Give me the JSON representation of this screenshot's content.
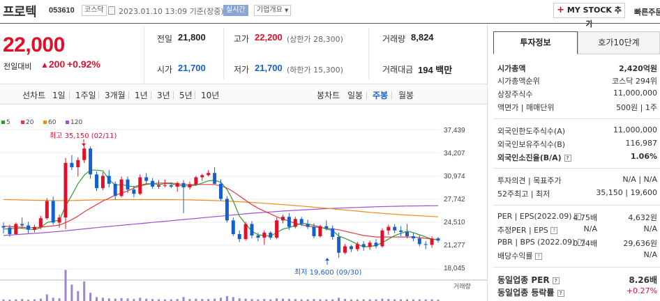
{
  "header": {
    "stock_name": "프로텍",
    "stock_code": "053610",
    "market_badge": "코스닥",
    "datetime": "2023.01.10 13:09",
    "basis": "기준(장중)",
    "realtime_badge": "실시간",
    "company_overview": "기업개요",
    "mystock_button": "MY STOCK 추가",
    "quick_order": "빠른주문"
  },
  "quote": {
    "price": "22,000",
    "change_label": "전일대비",
    "change_amount": "200",
    "change_pct": "+0.92%",
    "prev_close_label": "전일",
    "prev_close": "21,800",
    "high_label": "고가",
    "high": "22,200",
    "upper_limit": "(상한가 28,300)",
    "volume_label": "거래량",
    "volume": "8,824",
    "open_label": "시가",
    "open": "21,700",
    "low_label": "저가",
    "low": "21,700",
    "lower_limit": "(하한가 15,300)",
    "amount_label": "거래대금",
    "amount": "194 백만"
  },
  "chart_tabs": {
    "line_label": "선차트",
    "line_items": [
      "1일",
      "1주일",
      "3개월",
      "1년",
      "3년",
      "5년",
      "10년"
    ],
    "candle_label": "봉차트",
    "candle_items": [
      "일봉",
      "주봉",
      "월봉"
    ],
    "selected_candle": "주봉"
  },
  "legend": [
    {
      "label": "5",
      "color": "#2e9a2e"
    },
    {
      "label": "20",
      "color": "#e8383c"
    },
    {
      "label": "60",
      "color": "#f08c1e"
    },
    {
      "label": "120",
      "color": "#9f4fd0"
    }
  ],
  "chart_data": {
    "type": "candlestick",
    "yticks": [
      "37,439",
      "34,207",
      "30,974",
      "27,742",
      "24,510",
      "21,277",
      "18,045"
    ],
    "ylim": [
      18045,
      37439
    ],
    "high_annotation": "최고 35,150 (02/11)",
    "low_annotation": "최저 19,600 (09/30)",
    "volume_label": "거래량",
    "candles": [
      [
        24000,
        24500,
        23000,
        23800
      ],
      [
        23800,
        24200,
        22500,
        22900
      ],
      [
        22900,
        24500,
        22800,
        24300
      ],
      [
        24300,
        25200,
        23700,
        24100
      ],
      [
        24100,
        24600,
        23000,
        23500
      ],
      [
        23500,
        24200,
        23200,
        23900
      ],
      [
        23900,
        25400,
        23600,
        25100
      ],
      [
        25100,
        27900,
        24900,
        27500
      ],
      [
        27500,
        28100,
        24200,
        24500
      ],
      [
        24500,
        25600,
        23800,
        25200
      ],
      [
        25200,
        33500,
        23600,
        32800
      ],
      [
        32800,
        33900,
        31800,
        32200
      ],
      [
        32200,
        33600,
        30900,
        33200
      ],
      [
        33200,
        35150,
        32800,
        34800
      ],
      [
        34800,
        35100,
        30600,
        31200
      ],
      [
        31200,
        31600,
        28900,
        29300
      ],
      [
        29300,
        31500,
        29000,
        31000
      ],
      [
        31000,
        31800,
        29400,
        29900
      ],
      [
        29900,
        30200,
        27700,
        28200
      ],
      [
        28200,
        30900,
        28000,
        30500
      ],
      [
        30500,
        30900,
        28600,
        29100
      ],
      [
        29100,
        29600,
        28000,
        28500
      ],
      [
        28500,
        31200,
        28300,
        30800
      ],
      [
        30800,
        31400,
        29800,
        30300
      ],
      [
        30300,
        30700,
        29200,
        29500
      ],
      [
        29500,
        30400,
        29200,
        29700
      ],
      [
        29700,
        30500,
        29400,
        29700
      ],
      [
        29700,
        30100,
        29300,
        29500
      ],
      [
        29500,
        30200,
        28800,
        30000
      ],
      [
        30000,
        30400,
        25800,
        29400
      ],
      [
        29400,
        30200,
        29100,
        29800
      ],
      [
        29800,
        31000,
        29600,
        30800
      ],
      [
        30800,
        31300,
        30300,
        31100
      ],
      [
        31100,
        31800,
        30900,
        31400
      ],
      [
        31400,
        32200,
        29800,
        29900
      ],
      [
        29900,
        30500,
        27500,
        27800
      ],
      [
        27800,
        28200,
        24500,
        24800
      ],
      [
        24800,
        25200,
        22600,
        22900
      ],
      [
        22900,
        23400,
        21800,
        22200
      ],
      [
        22200,
        24600,
        22000,
        24300
      ],
      [
        24300,
        24700,
        22300,
        22700
      ],
      [
        22700,
        23100,
        21900,
        22400
      ],
      [
        22400,
        23400,
        21400,
        23100
      ],
      [
        23100,
        23300,
        22100,
        22400
      ],
      [
        22400,
        25200,
        22200,
        24800
      ],
      [
        24800,
        25600,
        24400,
        25300
      ],
      [
        25300,
        25800,
        23500,
        23900
      ],
      [
        23900,
        25300,
        23700,
        25000
      ],
      [
        25000,
        25300,
        24000,
        24300
      ],
      [
        24300,
        24900,
        23600,
        23900
      ],
      [
        23900,
        24400,
        22300,
        22600
      ],
      [
        22600,
        24200,
        22400,
        24000
      ],
      [
        24000,
        24800,
        23400,
        23700
      ],
      [
        23700,
        24100,
        22100,
        22500
      ],
      [
        22500,
        23100,
        19600,
        20300
      ],
      [
        20300,
        21500,
        20100,
        21200
      ],
      [
        21200,
        21400,
        20400,
        20800
      ],
      [
        20800,
        21800,
        20500,
        21500
      ],
      [
        21500,
        21900,
        20600,
        21100
      ],
      [
        21100,
        22000,
        20700,
        21700
      ],
      [
        21700,
        22200,
        20900,
        21200
      ],
      [
        21200,
        23700,
        21000,
        23400
      ],
      [
        23400,
        24200,
        22800,
        23900
      ],
      [
        23900,
        24300,
        23000,
        23400
      ],
      [
        23400,
        24000,
        22600,
        23200
      ],
      [
        23200,
        24300,
        22300,
        22600
      ],
      [
        22600,
        23100,
        21900,
        22300
      ],
      [
        22300,
        22700,
        21200,
        21500
      ],
      [
        21500,
        21900,
        20800,
        21400
      ],
      [
        21400,
        22600,
        21000,
        22300
      ],
      [
        22300,
        22500,
        21700,
        22000
      ]
    ],
    "ma5": [
      23600,
      23650,
      23700,
      23700,
      23600,
      23500,
      23800,
      24500,
      24700,
      24800,
      26800,
      28300,
      29900,
      31100,
      31800,
      31800,
      31700,
      30500,
      29700,
      29800,
      29600,
      29500,
      29700,
      29900,
      29900,
      29800,
      29900,
      29900,
      29700,
      29600,
      29600,
      29700,
      30000,
      30300,
      30400,
      30100,
      29100,
      27500,
      25400,
      24300,
      23300,
      22800,
      22700,
      22600,
      23100,
      23600,
      23800,
      24100,
      24400,
      24300,
      24100,
      23900,
      23600,
      23400,
      22600,
      22300,
      21900,
      21500,
      21100,
      21200,
      21300,
      21700,
      22200,
      22700,
      23000,
      23300,
      23100,
      22800,
      22500,
      22200,
      22100
    ],
    "ma20": [
      24000,
      23950,
      23900,
      23850,
      23800,
      23800,
      23850,
      23950,
      24050,
      24150,
      24500,
      24900,
      25400,
      26000,
      26500,
      27000,
      27500,
      27900,
      28300,
      28600,
      28900,
      29300,
      29600,
      29800,
      29900,
      30000,
      30000,
      30000,
      29900,
      29800,
      29800,
      29800,
      29800,
      29800,
      29800,
      29600,
      29300,
      28800,
      28200,
      27600,
      27000,
      26500,
      26100,
      25700,
      25300,
      25000,
      24700,
      24400,
      24200,
      24000,
      23900,
      23800,
      23700,
      23600,
      23500,
      23300,
      23100,
      22900,
      22700,
      22600,
      22500,
      22500,
      22500,
      22500,
      22500,
      22500,
      22500,
      22400,
      22300,
      22200,
      22100
    ],
    "ma60": [
      27700,
      27680,
      27660,
      27640,
      27620,
      27600,
      27590,
      27580,
      27570,
      27560,
      27560,
      27570,
      27590,
      27610,
      27630,
      27650,
      27660,
      27670,
      27680,
      27690,
      27690,
      27690,
      27690,
      27690,
      27690,
      27690,
      27690,
      27680,
      27670,
      27660,
      27650,
      27630,
      27610,
      27590,
      27560,
      27530,
      27490,
      27450,
      27400,
      27350,
      27300,
      27240,
      27180,
      27120,
      27060,
      27000,
      26930,
      26860,
      26790,
      26720,
      26650,
      26570,
      26490,
      26410,
      26330,
      26250,
      26170,
      26090,
      26010,
      25930,
      25850,
      25780,
      25720,
      25660,
      25600,
      25550,
      25500,
      25450,
      25400,
      25350,
      25300
    ],
    "ma120": [
      22700,
      22760,
      22820,
      22880,
      22940,
      23000,
      23060,
      23130,
      23200,
      23270,
      23350,
      23440,
      23530,
      23620,
      23710,
      23800,
      23880,
      23960,
      24040,
      24120,
      24200,
      24280,
      24360,
      24440,
      24520,
      24600,
      24680,
      24760,
      24840,
      24920,
      25000,
      25080,
      25160,
      25240,
      25320,
      25400,
      25480,
      25560,
      25640,
      25720,
      25800,
      25860,
      25920,
      25980,
      26040,
      26100,
      26150,
      26200,
      26250,
      26300,
      26350,
      26390,
      26430,
      26470,
      26510,
      26550,
      26580,
      26610,
      26640,
      26670,
      26700,
      26720,
      26740,
      26760,
      26780,
      26800,
      26810,
      26820,
      26830,
      26840,
      26850
    ],
    "volume": [
      0.05,
      0.04,
      0.05,
      0.06,
      0.04,
      0.05,
      0.07,
      0.2,
      0.1,
      0.08,
      0.95,
      0.5,
      0.3,
      0.6,
      0.25,
      0.12,
      0.1,
      0.08,
      0.07,
      0.09,
      0.08,
      0.06,
      0.1,
      0.07,
      0.06,
      0.05,
      0.05,
      0.05,
      0.06,
      0.12,
      0.06,
      0.07,
      0.06,
      0.06,
      0.07,
      0.1,
      0.15,
      0.12,
      0.08,
      0.07,
      0.06,
      0.05,
      0.06,
      0.05,
      0.08,
      0.07,
      0.06,
      0.06,
      0.05,
      0.05,
      0.06,
      0.05,
      0.05,
      0.05,
      0.1,
      0.06,
      0.05,
      0.05,
      0.05,
      0.05,
      0.05,
      0.07,
      0.06,
      0.05,
      0.05,
      0.05,
      0.05,
      0.05,
      0.05,
      0.05,
      0.04
    ]
  },
  "right_panel": {
    "tab_invest": "투자정보",
    "tab_orderbook": "호가10단계",
    "rows1": [
      {
        "k": "시가총액",
        "v": "2,420억원"
      },
      {
        "k": "시가총액순위",
        "v": "코스닥 294위"
      },
      {
        "k": "상장주식수",
        "v": "11,000,000"
      },
      {
        "k": "액면가 | 매매단위",
        "v": "500원 | 1주"
      }
    ],
    "rows2": [
      {
        "k": "외국인한도주식수(A)",
        "v": "11,000,000"
      },
      {
        "k": "외국인보유주식수(B)",
        "v": "116,987"
      },
      {
        "k": "외국인소진율(B/A)",
        "v": "1.06%"
      }
    ],
    "rows3": [
      {
        "k": "투자의견 | 목표주가",
        "v": "N/A | N/A"
      },
      {
        "k": "52주최고 | 최저",
        "v": "35,150 | 19,600"
      }
    ],
    "rows4": [
      {
        "k": "PER | EPS(2022.09)",
        "v1": "4.75배",
        "v2": "4,632원"
      },
      {
        "k": "추정PER | EPS",
        "v1": "N/A",
        "v2": "N/A"
      },
      {
        "k": "PBR | BPS (2022.09)",
        "v1": "0.74배",
        "v2": "29,636원"
      },
      {
        "k": "배당수익률",
        "v1": "",
        "v2": "N/A"
      }
    ],
    "rows5": [
      {
        "k": "동일업종 PER",
        "v": "8.26배"
      },
      {
        "k": "동일업종 등락률",
        "v": "+0.27%"
      }
    ]
  }
}
